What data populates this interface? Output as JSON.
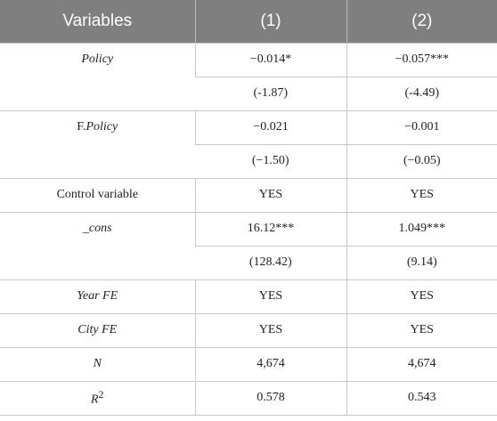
{
  "header": {
    "col0": "Variables",
    "col1": "(1)",
    "col2": "(2)"
  },
  "rows": {
    "policy": {
      "label": "Policy",
      "coef1": "−0.014*",
      "coef2": "−0.057***",
      "t1": "(-1.87)",
      "t2": "(-4.49)"
    },
    "fpolicy": {
      "label_prefix": "F.",
      "label_main": "Policy",
      "coef1": "−0.021",
      "coef2": "−0.001",
      "t1": "(−1.50)",
      "t2": "(−0.05)"
    },
    "control": {
      "label": "Control variable",
      "v1": "YES",
      "v2": "YES"
    },
    "cons": {
      "label": "_cons",
      "coef1": "16.12***",
      "coef2": "1.049***",
      "t1": "(128.42)",
      "t2": "(9.14)"
    },
    "yearfe": {
      "label": "Year FE",
      "v1": "YES",
      "v2": "YES"
    },
    "cityfe": {
      "label": "City FE",
      "v1": "YES",
      "v2": "YES"
    },
    "n": {
      "label": "N",
      "v1": "4,674",
      "v2": "4,674"
    },
    "r2": {
      "label_main": "R",
      "label_sup": "2",
      "v1": "0.578",
      "v2": "0.543"
    }
  }
}
